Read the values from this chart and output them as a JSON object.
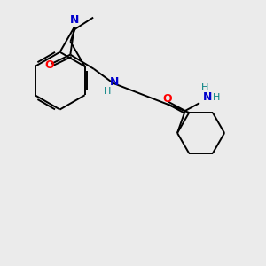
{
  "background_color": "#ebebeb",
  "atom_colors": {
    "C": "#000000",
    "N": "#0000cc",
    "O": "#ff0000",
    "H": "#008080"
  },
  "bond_color": "#000000",
  "figsize": [
    3.0,
    3.0
  ],
  "dpi": 100
}
